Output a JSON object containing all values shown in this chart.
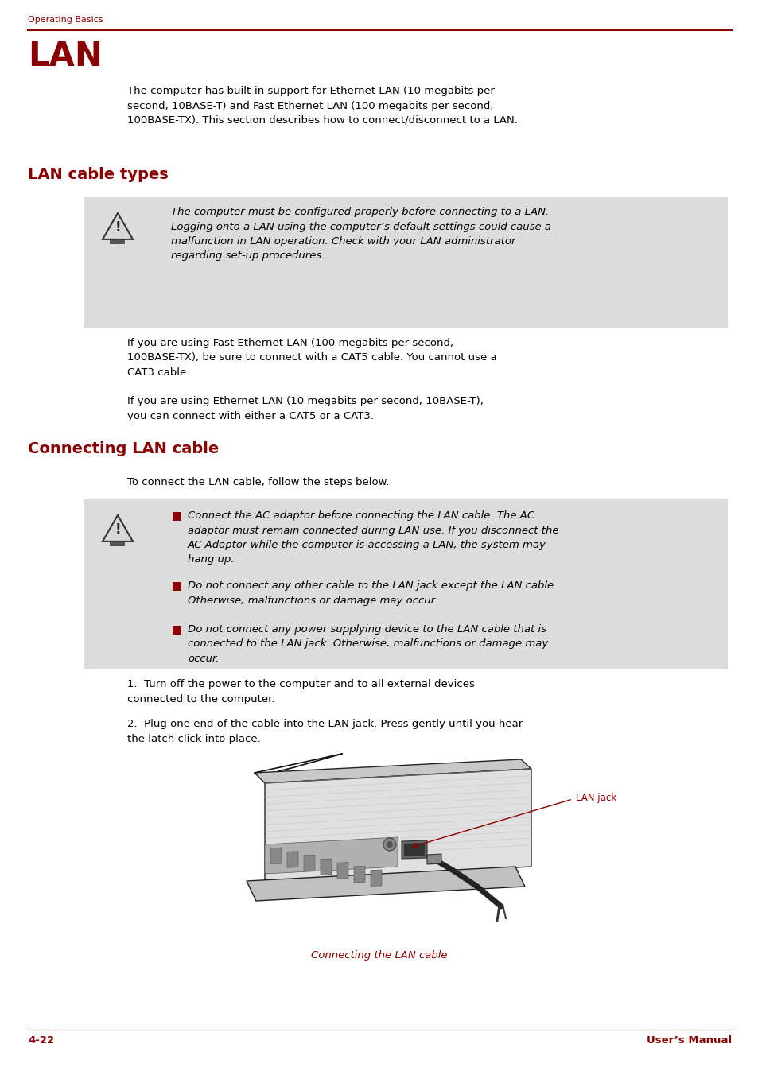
{
  "page_bg": "#ffffff",
  "header_text": "Operating Basics",
  "header_color": "#8B0000",
  "header_line_color": "#8B0000",
  "title": "LAN",
  "title_color": "#8B0000",
  "section1_title": "LAN cable types",
  "section1_color": "#8B0000",
  "section2_title": "Connecting LAN cable",
  "section2_color": "#8B0000",
  "intro_text": "The computer has built-in support for Ethernet LAN (10 megabits per\nsecond, 10BASE-T) and Fast Ethernet LAN (100 megabits per second,\n100BASE-TX). This section describes how to connect/disconnect to a LAN.",
  "warning1_text": "The computer must be configured properly before connecting to a LAN.\nLogging onto a LAN using the computer’s default settings could cause a\nmalfunction in LAN operation. Check with your LAN administrator\nregarding set-up procedures.",
  "warn_bg": "#DCDCDC",
  "cable_para1": "If you are using Fast Ethernet LAN (100 megabits per second,\n100BASE-TX), be sure to connect with a CAT5 cable. You cannot use a\nCAT3 cable.",
  "cable_para2": "If you are using Ethernet LAN (10 megabits per second, 10BASE-T),\nyou can connect with either a CAT5 or a CAT3.",
  "connect_intro": "To connect the LAN cable, follow the steps below.",
  "warning2_bullet1": "Connect the AC adaptor before connecting the LAN cable. The AC\nadaptor must remain connected during LAN use. If you disconnect the\nAC Adaptor while the computer is accessing a LAN, the system may\nhang up.",
  "warning2_bullet2": "Do not connect any other cable to the LAN jack except the LAN cable.\nOtherwise, malfunctions or damage may occur.",
  "warning2_bullet3": "Do not connect any power supplying device to the LAN cable that is\nconnected to the LAN jack. Otherwise, malfunctions or damage may\noccur.",
  "step1": "Turn off the power to the computer and to all external devices\nconnected to the computer.",
  "step2": "Plug one end of the cable into the LAN jack. Press gently until you hear\nthe latch click into place.",
  "lan_jack_label": "LAN jack",
  "lan_jack_color": "#8B0000",
  "figure_caption": "Connecting the LAN cable",
  "caption_color": "#8B0000",
  "footer_left": "4-22",
  "footer_right": "User’s Manual",
  "footer_color": "#8B0000",
  "bullet_color": "#8B0000",
  "body_text_color": "#000000",
  "body_fontsize": 9.5,
  "italic_fontsize": 9.5
}
